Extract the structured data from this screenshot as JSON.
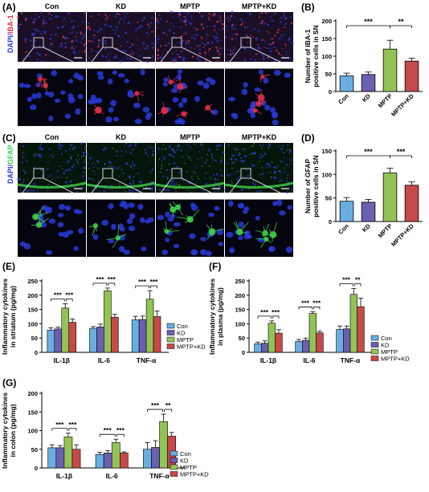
{
  "panels": {
    "A": {
      "label": "(A)",
      "stain_left": "DAPI/",
      "stain_right": "IBA-1",
      "groups": [
        "Con",
        "KD",
        "MPTP",
        "MPTP+KD"
      ]
    },
    "B": {
      "label": "(B)"
    },
    "C": {
      "label": "(C)",
      "stain_left": "DAPI/",
      "stain_right": "GFAP",
      "groups": [
        "Con",
        "KD",
        "MPTP",
        "MPTP+KD"
      ]
    },
    "D": {
      "label": "(D)"
    },
    "E": {
      "label": "(E)"
    },
    "F": {
      "label": "(F)"
    },
    "G": {
      "label": "(G)"
    }
  },
  "colors": {
    "Con": "#6aaee0",
    "KD": "#6b5fb0",
    "MPTP": "#93c256",
    "MPTP+KD": "#c54a4a",
    "iba_fluor": "#e0304a",
    "gfap_fluor": "#3ed24a",
    "dapi": "#2a3ad8"
  },
  "chart_data": [
    {
      "id": "B",
      "type": "bar",
      "ylabel_lines": [
        "Number of IBA-1",
        "positive cells in SN"
      ],
      "categories": [
        "Con",
        "KD",
        "MPTP",
        "MPTP+KD"
      ],
      "values": [
        44,
        48,
        120,
        86
      ],
      "errors": [
        8,
        7,
        25,
        8
      ],
      "ylim": [
        0,
        200
      ],
      "yticks": [
        0,
        50,
        100,
        150,
        200
      ],
      "sig": [
        {
          "from": 0,
          "to": 2,
          "text": "***"
        },
        {
          "from": 2,
          "to": 3,
          "text": "**"
        }
      ]
    },
    {
      "id": "D",
      "type": "bar",
      "ylabel_lines": [
        "Number of GFAP",
        "positive cells in SN"
      ],
      "categories": [
        "Con",
        "KD",
        "MPTP",
        "MPTP+KD"
      ],
      "values": [
        43,
        41,
        103,
        77
      ],
      "errors": [
        8,
        6,
        10,
        7
      ],
      "ylim": [
        0,
        150
      ],
      "yticks": [
        0,
        50,
        100,
        150
      ],
      "sig": [
        {
          "from": 0,
          "to": 2,
          "text": "***"
        },
        {
          "from": 2,
          "to": 3,
          "text": "***"
        }
      ]
    },
    {
      "id": "E",
      "type": "bar",
      "ylabel_lines": [
        "Inflammatory cytokines",
        "in striatum (pg/mg)"
      ],
      "categories": [
        "IL-1β",
        "IL-6",
        "TNF-α"
      ],
      "series": [
        {
          "name": "Con",
          "values": [
            78,
            84,
            114
          ],
          "errors": [
            8,
            6,
            12
          ]
        },
        {
          "name": "KD",
          "values": [
            82,
            89,
            115
          ],
          "errors": [
            6,
            10,
            12
          ]
        },
        {
          "name": "MPTP",
          "values": [
            155,
            215,
            186
          ],
          "errors": [
            15,
            10,
            30
          ]
        },
        {
          "name": "MPTP+KD",
          "values": [
            105,
            123,
            125
          ],
          "errors": [
            12,
            10,
            20
          ]
        }
      ],
      "ylim": [
        0,
        250
      ],
      "yticks": [
        0,
        50,
        100,
        150,
        200,
        250
      ],
      "sig": [
        {
          "cat": 0,
          "left": "***",
          "right": "***"
        },
        {
          "cat": 1,
          "left": "***",
          "right": "***"
        },
        {
          "cat": 2,
          "left": "***",
          "right": "***"
        }
      ],
      "legend": [
        "Con",
        "KD",
        "MPTP",
        "MPTP+KD"
      ]
    },
    {
      "id": "F",
      "type": "bar",
      "ylabel_lines": [
        "Inflammatory cytokines",
        "in plasma (pg/mg)"
      ],
      "categories": [
        "IL-1β",
        "IL-6",
        "TNF-α"
      ],
      "series": [
        {
          "name": "Con",
          "values": [
            30,
            38,
            80
          ],
          "errors": [
            6,
            7,
            12
          ]
        },
        {
          "name": "KD",
          "values": [
            32,
            42,
            82
          ],
          "errors": [
            8,
            8,
            10
          ]
        },
        {
          "name": "MPTP",
          "values": [
            102,
            136,
            203
          ],
          "errors": [
            8,
            6,
            20
          ]
        },
        {
          "name": "MPTP+KD",
          "values": [
            67,
            68,
            160
          ],
          "errors": [
            12,
            6,
            30
          ]
        }
      ],
      "ylim": [
        0,
        250
      ],
      "yticks": [
        0,
        50,
        100,
        150,
        200,
        250
      ],
      "sig": [
        {
          "cat": 0,
          "left": "***",
          "right": "***"
        },
        {
          "cat": 1,
          "left": "***",
          "right": "***"
        },
        {
          "cat": 2,
          "left": "***",
          "right": "**"
        }
      ],
      "legend": [
        "Con",
        "KD",
        "MPTP",
        "MPTP+KD"
      ]
    },
    {
      "id": "G",
      "type": "bar",
      "ylabel_lines": [
        "Inflammatory cytokines",
        "in colon (pg/mg)"
      ],
      "categories": [
        "IL-1β",
        "IL-6",
        "TNF-α"
      ],
      "series": [
        {
          "name": "Con",
          "values": [
            54,
            36,
            50
          ],
          "errors": [
            8,
            6,
            18
          ]
        },
        {
          "name": "KD",
          "values": [
            54,
            40,
            55
          ],
          "errors": [
            6,
            6,
            18
          ]
        },
        {
          "name": "MPTP",
          "values": [
            83,
            68,
            124
          ],
          "errors": [
            10,
            9,
            20
          ]
        },
        {
          "name": "MPTP+KD",
          "values": [
            50,
            40,
            85
          ],
          "errors": [
            12,
            3,
            10
          ]
        }
      ],
      "ylim": [
        0,
        200
      ],
      "yticks": [
        0,
        50,
        100,
        150,
        200
      ],
      "sig": [
        {
          "cat": 0,
          "left": "***",
          "right": "***"
        },
        {
          "cat": 1,
          "left": "***",
          "right": "***"
        },
        {
          "cat": 2,
          "left": "***",
          "right": "**"
        }
      ],
      "legend": [
        "Con",
        "KD",
        "MPTP",
        "MPTP+KD"
      ]
    }
  ]
}
